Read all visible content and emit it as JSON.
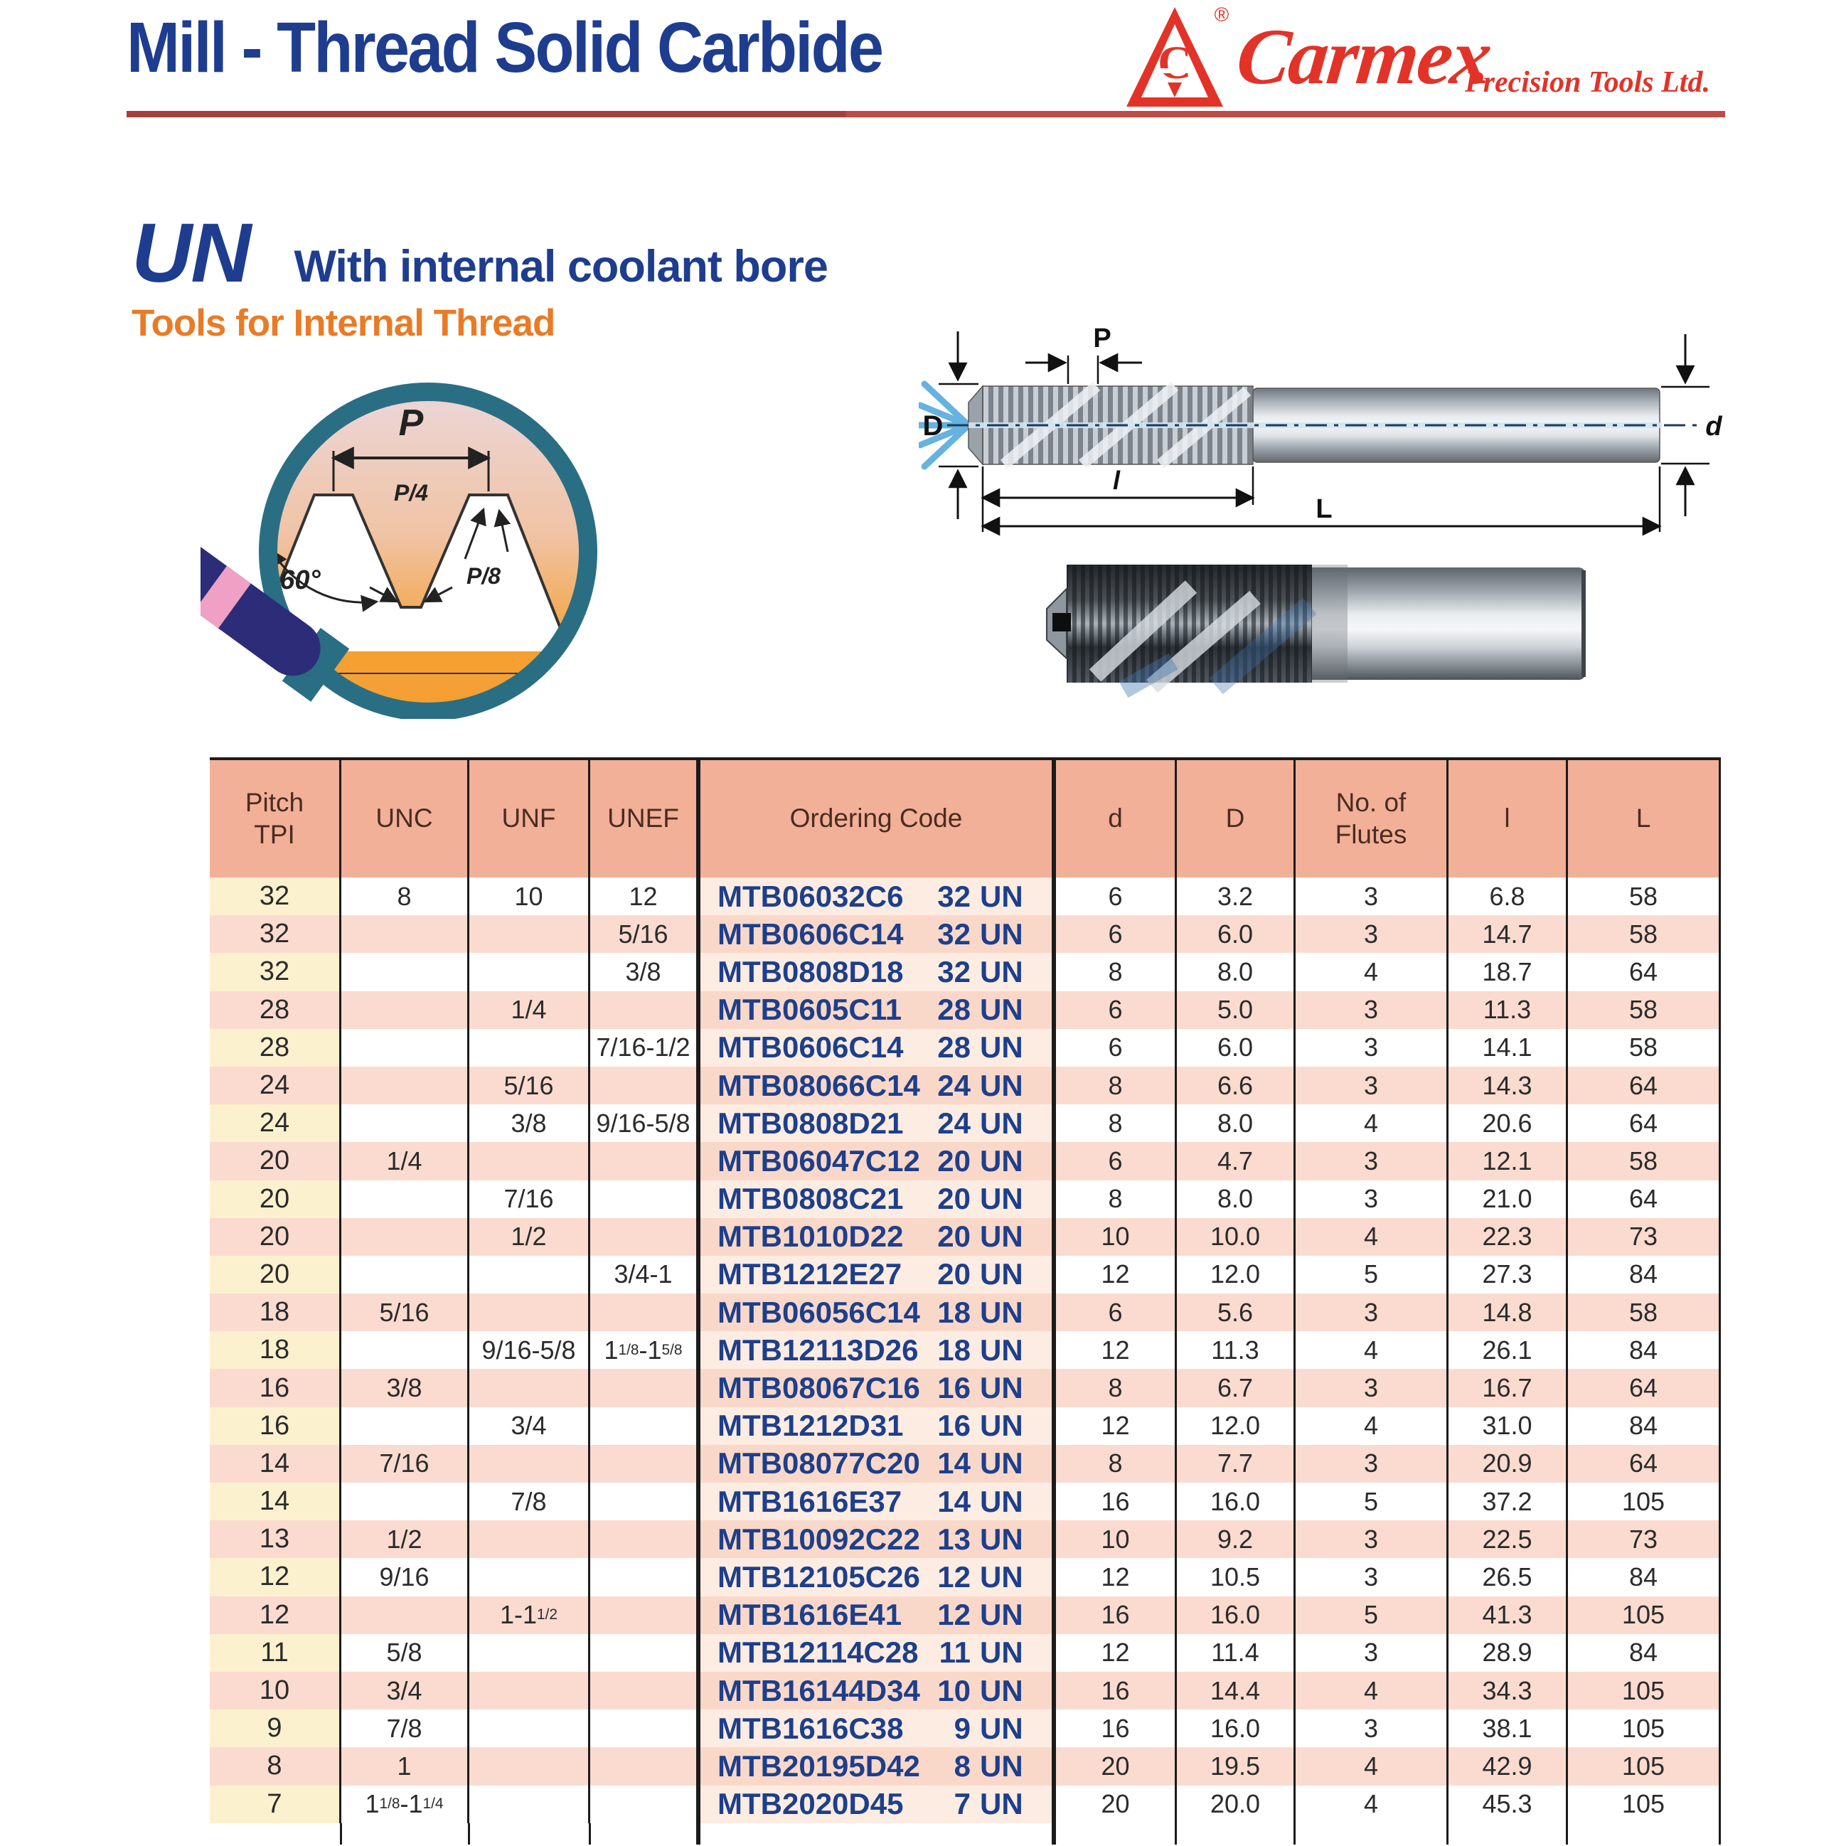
{
  "header": {
    "title": "Mill - Thread Solid Carbide",
    "brand": {
      "registered": "®",
      "name": "Carmex",
      "tagline": "Precision Tools Ltd.",
      "logo_letter": "C"
    }
  },
  "section": {
    "series": "UN",
    "subtitle": "With internal coolant bore",
    "tools_for": "Tools for Internal Thread"
  },
  "thread_profile": {
    "p": "P",
    "p4": "P/4",
    "p8": "P/8",
    "angle": "60°"
  },
  "tool_diagram": {
    "p": "P",
    "diameter_cut": "D",
    "diameter_shank": "d",
    "thread_length": "l",
    "overall_length": "L"
  },
  "table": {
    "headers": {
      "tpi": "Pitch\nTPI",
      "unc": "UNC",
      "unf": "UNF",
      "unef": "UNEF",
      "code": "Ordering Code",
      "d": "d",
      "D": "D",
      "flutes": "No. of\nFlutes",
      "l": "l",
      "L": "L"
    },
    "rows": [
      {
        "tpi": "32",
        "unc": "8",
        "unf": "10",
        "unef": "12",
        "code": "MTB06032C6",
        "size": "32 UN",
        "d": "6",
        "D": "3.2",
        "flutes": "3",
        "l": "6.8",
        "L": "58"
      },
      {
        "tpi": "32",
        "unc": "",
        "unf": "",
        "unef": "5/16",
        "code": "MTB0606C14",
        "size": "32 UN",
        "d": "6",
        "D": "6.0",
        "flutes": "3",
        "l": "14.7",
        "L": "58"
      },
      {
        "tpi": "32",
        "unc": "",
        "unf": "",
        "unef": "3/8",
        "code": "MTB0808D18",
        "size": "32 UN",
        "d": "8",
        "D": "8.0",
        "flutes": "4",
        "l": "18.7",
        "L": "64"
      },
      {
        "tpi": "28",
        "unc": "",
        "unf": "1/4",
        "unef": "",
        "code": "MTB0605C11",
        "size": "28 UN",
        "d": "6",
        "D": "5.0",
        "flutes": "3",
        "l": "11.3",
        "L": "58"
      },
      {
        "tpi": "28",
        "unc": "",
        "unf": "",
        "unef": "7/16-1/2",
        "code": "MTB0606C14",
        "size": "28 UN",
        "d": "6",
        "D": "6.0",
        "flutes": "3",
        "l": "14.1",
        "L": "58"
      },
      {
        "tpi": "24",
        "unc": "",
        "unf": "5/16",
        "unef": "",
        "code": "MTB08066C14",
        "size": "24 UN",
        "d": "8",
        "D": "6.6",
        "flutes": "3",
        "l": "14.3",
        "L": "64"
      },
      {
        "tpi": "24",
        "unc": "",
        "unf": "3/8",
        "unef": "9/16-5/8",
        "code": "MTB0808D21",
        "size": "24 UN",
        "d": "8",
        "D": "8.0",
        "flutes": "4",
        "l": "20.6",
        "L": "64"
      },
      {
        "tpi": "20",
        "unc": "1/4",
        "unf": "",
        "unef": "",
        "code": "MTB06047C12",
        "size": "20 UN",
        "d": "6",
        "D": "4.7",
        "flutes": "3",
        "l": "12.1",
        "L": "58"
      },
      {
        "tpi": "20",
        "unc": "",
        "unf": "7/16",
        "unef": "",
        "code": "MTB0808C21",
        "size": "20 UN",
        "d": "8",
        "D": "8.0",
        "flutes": "3",
        "l": "21.0",
        "L": "64"
      },
      {
        "tpi": "20",
        "unc": "",
        "unf": "1/2",
        "unef": "",
        "code": "MTB1010D22",
        "size": "20 UN",
        "d": "10",
        "D": "10.0",
        "flutes": "4",
        "l": "22.3",
        "L": "73"
      },
      {
        "tpi": "20",
        "unc": "",
        "unf": "",
        "unef": "3/4-1",
        "code": "MTB1212E27",
        "size": "20 UN",
        "d": "12",
        "D": "12.0",
        "flutes": "5",
        "l": "27.3",
        "L": "84"
      },
      {
        "tpi": "18",
        "unc": "5/16",
        "unf": "",
        "unef": "",
        "code": "MTB06056C14",
        "size": "18 UN",
        "d": "6",
        "D": "5.6",
        "flutes": "3",
        "l": "14.8",
        "L": "58"
      },
      {
        "tpi": "18",
        "unc": "",
        "unf": "9/16-5/8",
        "unef": "1{1/8}-1{5/8}",
        "code": "MTB12113D26",
        "size": "18 UN",
        "d": "12",
        "D": "11.3",
        "flutes": "4",
        "l": "26.1",
        "L": "84"
      },
      {
        "tpi": "16",
        "unc": "3/8",
        "unf": "",
        "unef": "",
        "code": "MTB08067C16",
        "size": "16 UN",
        "d": "8",
        "D": "6.7",
        "flutes": "3",
        "l": "16.7",
        "L": "64"
      },
      {
        "tpi": "16",
        "unc": "",
        "unf": "3/4",
        "unef": "",
        "code": "MTB1212D31",
        "size": "16 UN",
        "d": "12",
        "D": "12.0",
        "flutes": "4",
        "l": "31.0",
        "L": "84"
      },
      {
        "tpi": "14",
        "unc": "7/16",
        "unf": "",
        "unef": "",
        "code": "MTB08077C20",
        "size": "14 UN",
        "d": "8",
        "D": "7.7",
        "flutes": "3",
        "l": "20.9",
        "L": "64"
      },
      {
        "tpi": "14",
        "unc": "",
        "unf": "7/8",
        "unef": "",
        "code": "MTB1616E37",
        "size": "14 UN",
        "d": "16",
        "D": "16.0",
        "flutes": "5",
        "l": "37.2",
        "L": "105"
      },
      {
        "tpi": "13",
        "unc": "1/2",
        "unf": "",
        "unef": "",
        "code": "MTB10092C22",
        "size": "13 UN",
        "d": "10",
        "D": "9.2",
        "flutes": "3",
        "l": "22.5",
        "L": "73"
      },
      {
        "tpi": "12",
        "unc": "9/16",
        "unf": "",
        "unef": "",
        "code": "MTB12105C26",
        "size": "12 UN",
        "d": "12",
        "D": "10.5",
        "flutes": "3",
        "l": "26.5",
        "L": "84"
      },
      {
        "tpi": "12",
        "unc": "",
        "unf": "1-1{1/2}",
        "unef": "",
        "code": "MTB1616E41",
        "size": "12 UN",
        "d": "16",
        "D": "16.0",
        "flutes": "5",
        "l": "41.3",
        "L": "105"
      },
      {
        "tpi": "11",
        "unc": "5/8",
        "unf": "",
        "unef": "",
        "code": "MTB12114C28",
        "size": "11 UN",
        "d": "12",
        "D": "11.4",
        "flutes": "3",
        "l": "28.9",
        "L": "84"
      },
      {
        "tpi": "10",
        "unc": "3/4",
        "unf": "",
        "unef": "",
        "code": "MTB16144D34",
        "size": "10 UN",
        "d": "16",
        "D": "14.4",
        "flutes": "4",
        "l": "34.3",
        "L": "105"
      },
      {
        "tpi": "9",
        "unc": "7/8",
        "unf": "",
        "unef": "",
        "code": "MTB1616C38",
        "size": "9 UN",
        "d": "16",
        "D": "16.0",
        "flutes": "3",
        "l": "38.1",
        "L": "105"
      },
      {
        "tpi": "8",
        "unc": "1",
        "unf": "",
        "unef": "",
        "code": "MTB20195D42",
        "size": "8 UN",
        "d": "20",
        "D": "19.5",
        "flutes": "4",
        "l": "42.9",
        "L": "105"
      },
      {
        "tpi": "7",
        "unc": "1{1/8}-1{1/4}",
        "unf": "",
        "unef": "",
        "code": "MTB2020D45",
        "size": "7 UN",
        "d": "20",
        "D": "20.0",
        "flutes": "4",
        "l": "45.3",
        "L": "105"
      }
    ]
  },
  "colors": {
    "heading_blue": "#1e3d8f",
    "brand_red": "#e23329",
    "accent_orange": "#e97b26",
    "code_navy": "#1d3f8b",
    "header_bg": "#f2b098",
    "row_pink": "#fbdbcf",
    "tpi_cream": "#fcf1cf",
    "code_tint": "#fdece2",
    "rule_red": "#a4403c"
  }
}
